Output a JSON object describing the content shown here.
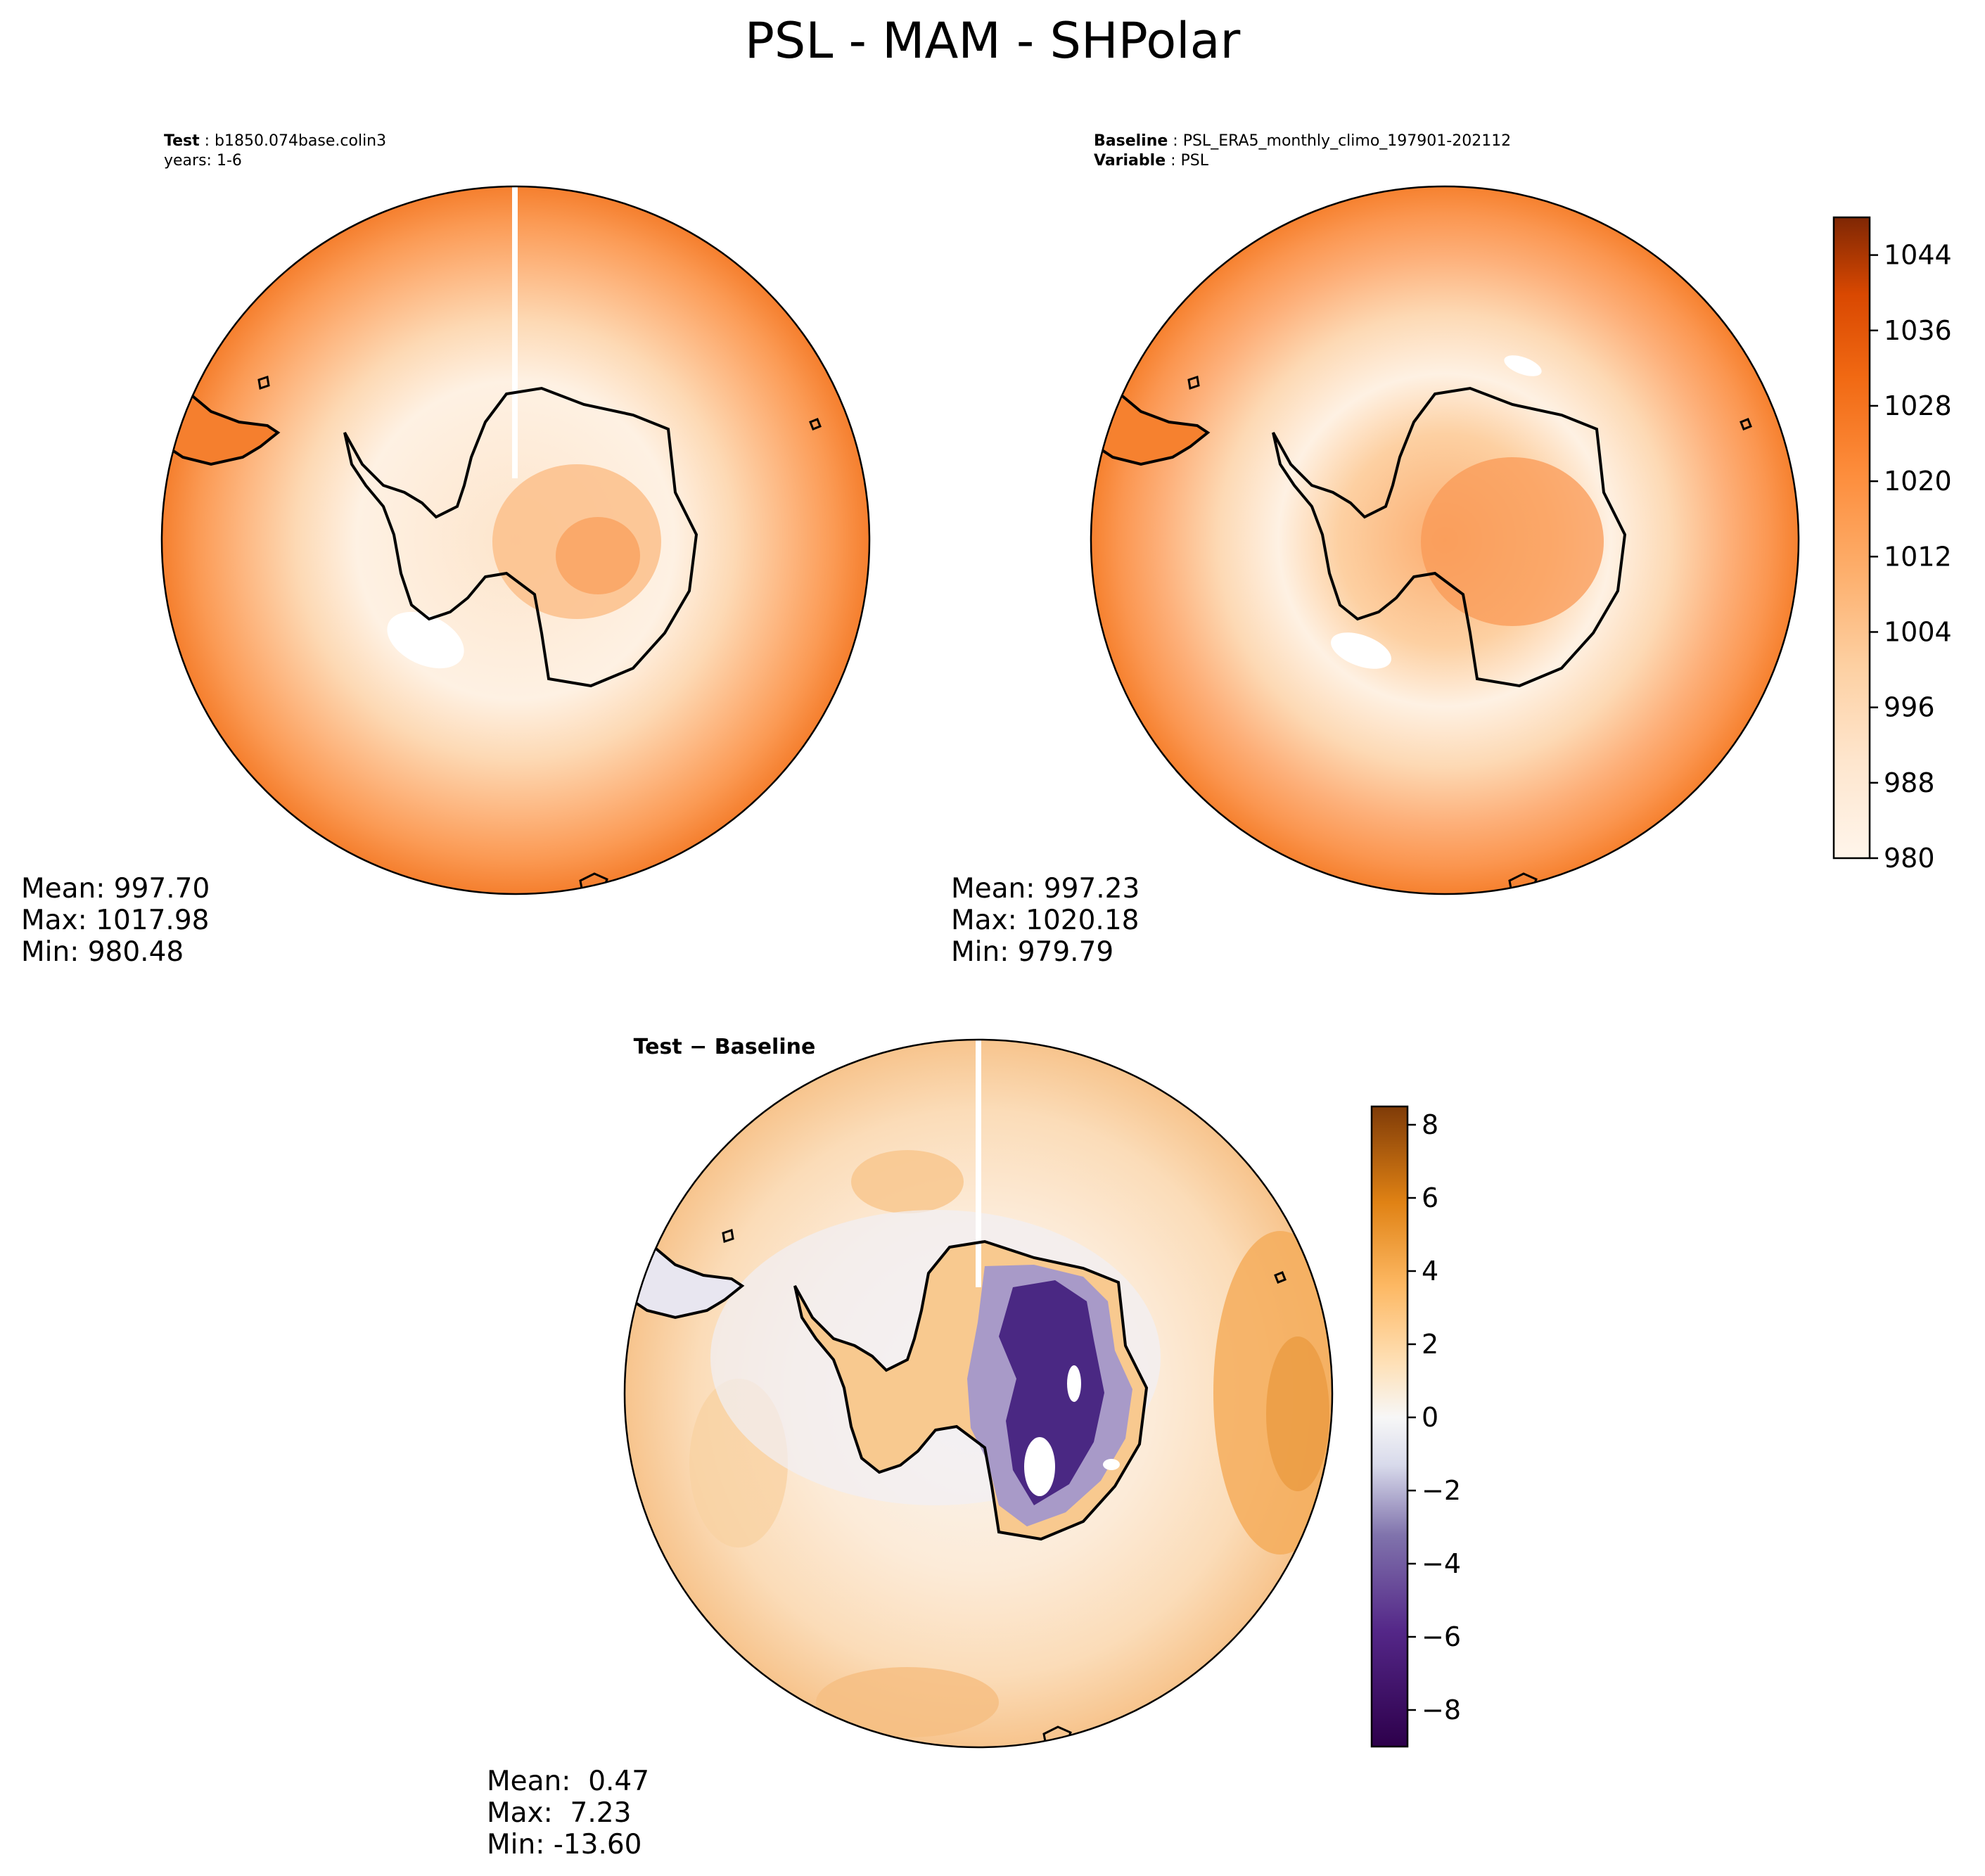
{
  "figure": {
    "title": "PSL - MAM - SHPolar"
  },
  "chart_data": [
    {
      "type": "heatmap",
      "panel": "test",
      "projection": "south-polar-stereographic",
      "header": {
        "label": "Test",
        "case_name": "b1850.074base.colin3",
        "years_line": "years: 1-6"
      },
      "variable": "PSL",
      "season": "MAM",
      "colormap": "Oranges",
      "levels": [
        980,
        984,
        988,
        992,
        996,
        1000,
        1004,
        1008,
        1012,
        1016,
        1020,
        1024,
        1028,
        1032,
        1036,
        1040,
        1044,
        1048
      ],
      "field_summary": "pressure lowest (~980-990) near the circumpolar trough around Antarctica, rising to ~1012-1016 at the outer edge and ~1004-1012 over the East Antarctic interior",
      "stats": {
        "mean_line": "Mean: 997.70",
        "max_line": "Max: 1017.98",
        "min_line": "Min: 980.48",
        "mean": 997.7,
        "max": 1017.98,
        "min": 980.48
      }
    },
    {
      "type": "heatmap",
      "panel": "baseline",
      "projection": "south-polar-stereographic",
      "header": {
        "baseline_label": "Baseline",
        "baseline_value": "PSL_ERA5_monthly_climo_197901-202112",
        "variable_label": "Variable",
        "variable_value": "PSL"
      },
      "colormap": "Oranges",
      "levels": [
        980,
        984,
        988,
        992,
        996,
        1000,
        1004,
        1008,
        1012,
        1016,
        1020,
        1024,
        1028,
        1032,
        1036,
        1040,
        1044,
        1048
      ],
      "field_summary": "similar to test with slightly higher interior pressure (~1008-1016) over East Antarctica",
      "stats": {
        "mean_line": "Mean: 997.23",
        "max_line": "Max: 1020.18",
        "min_line": "Min: 979.79",
        "mean": 997.23,
        "max": 1020.18,
        "min": 979.79
      },
      "colorbar": {
        "range": [
          980,
          1048
        ],
        "ticks": [
          980,
          988,
          996,
          1004,
          1012,
          1020,
          1028,
          1036,
          1044
        ],
        "tick_labels": [
          "980",
          "988",
          "996",
          "1004",
          "1012",
          "1020",
          "1028",
          "1036",
          "1044"
        ]
      }
    },
    {
      "type": "heatmap",
      "panel": "difference",
      "projection": "south-polar-stereographic",
      "header": {
        "title": "Test − Baseline"
      },
      "colormap": "PuOr_r",
      "levels": [
        -9,
        -8.5,
        -8,
        -7.5,
        -7,
        -6.5,
        -6,
        -5.5,
        -5,
        -4.5,
        -4,
        -3.5,
        -3,
        -2.5,
        -2,
        -1.5,
        -1,
        -0.5,
        0,
        0.5,
        1,
        1.5,
        2,
        2.5,
        3,
        3.5,
        4,
        4.5,
        5,
        5.5,
        6,
        6.5,
        7,
        7.5,
        8,
        8.5
      ],
      "field_summary": "ocean mostly +0.5 to +3 (up to ~+5 in the east), East Antarctic interior strongly negative (-4 to below -9), Antarctic Peninsula and coast slightly positive",
      "stats": {
        "mean_line": "Mean:  0.47",
        "max_line": "Max:  7.23",
        "min_line": "Min: -13.60",
        "mean": 0.47,
        "max": 7.23,
        "min": -13.6
      },
      "colorbar": {
        "range": [
          -9,
          8.5
        ],
        "ticks": [
          -8,
          -6,
          -4,
          -2,
          0,
          2,
          4,
          6,
          8
        ],
        "tick_labels": [
          "−8",
          "−6",
          "−4",
          "−2",
          "0",
          "2",
          "4",
          "6",
          "8"
        ]
      }
    }
  ]
}
